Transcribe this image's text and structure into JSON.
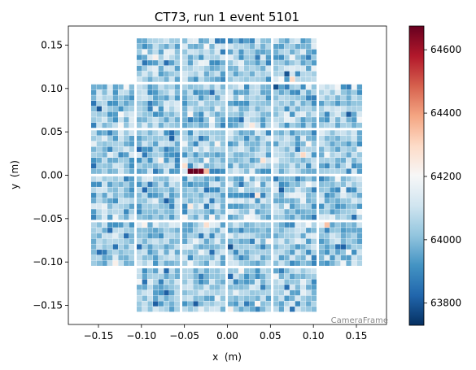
{
  "chart_data": {
    "type": "heatmap",
    "title": "CT73, run 1 event 5101",
    "xlabel": "x  (m)",
    "ylabel": "y  (m)",
    "xlim": [
      -0.185,
      0.185
    ],
    "ylim": [
      -0.172,
      0.172
    ],
    "x_ticks": [
      -0.15,
      -0.1,
      -0.05,
      0.0,
      0.05,
      0.1,
      0.15
    ],
    "x_tick_labels": [
      "−0.15",
      "−0.10",
      "−0.05",
      "0.00",
      "0.05",
      "0.10",
      "0.15"
    ],
    "y_ticks": [
      0.15,
      0.1,
      0.05,
      0.0,
      -0.05,
      -0.1,
      -0.15
    ],
    "y_tick_labels": [
      "0.15",
      "0.10",
      "0.05",
      "0.00",
      "−0.05",
      "−0.10",
      "−0.15"
    ],
    "frame_label": "CameraFrame",
    "colormap": "RdBu_r",
    "colorbar": {
      "min": 63730,
      "max": 64675,
      "ticks": [
        64600,
        64400,
        64200,
        64000,
        63800
      ],
      "tick_labels": [
        "64600",
        "64400",
        "64200",
        "64000",
        "63800"
      ]
    },
    "camera_layout": {
      "module_size_m": 0.0505,
      "pixels_per_module_side": 8,
      "module_rows_m": [
        {
          "y": 0.1325,
          "x_starts": [
            -0.1055,
            -0.0525,
            0.0005,
            0.0535
          ]
        },
        {
          "y": 0.0795,
          "x_starts": [
            -0.1585,
            -0.1055,
            -0.0525,
            0.0005,
            0.0535,
            0.1065
          ]
        },
        {
          "y": 0.0265,
          "x_starts": [
            -0.1585,
            -0.1055,
            -0.0525,
            0.0005,
            0.0535,
            0.1065
          ]
        },
        {
          "y": -0.0265,
          "x_starts": [
            -0.1585,
            -0.1055,
            -0.0525,
            0.0005,
            0.0535,
            0.1065
          ]
        },
        {
          "y": -0.0795,
          "x_starts": [
            -0.1585,
            -0.1055,
            -0.0525,
            0.0005,
            0.0535,
            0.1065
          ]
        },
        {
          "y": -0.1325,
          "x_starts": [
            -0.1055,
            -0.0525,
            0.0005,
            0.0535
          ]
        }
      ]
    },
    "pixel_value_distribution": {
      "mean": 64020,
      "std": 75
    },
    "bright_pixels": [
      {
        "x": -0.0445,
        "y": 0.0055,
        "value": 64675
      },
      {
        "x": -0.0385,
        "y": 0.0055,
        "value": 64675
      },
      {
        "x": -0.0325,
        "y": 0.0055,
        "value": 64650
      },
      {
        "x": -0.0265,
        "y": 0.003,
        "value": 64350
      },
      {
        "x": -0.0515,
        "y": 0.012,
        "value": 64280
      },
      {
        "x": 0.032,
        "y": 0.056,
        "value": 64250
      },
      {
        "x": 0.088,
        "y": 0.023,
        "value": 64300
      },
      {
        "x": 0.0785,
        "y": 0.107,
        "value": 64300
      },
      {
        "x": -0.025,
        "y": -0.055,
        "value": 64280
      }
    ]
  }
}
